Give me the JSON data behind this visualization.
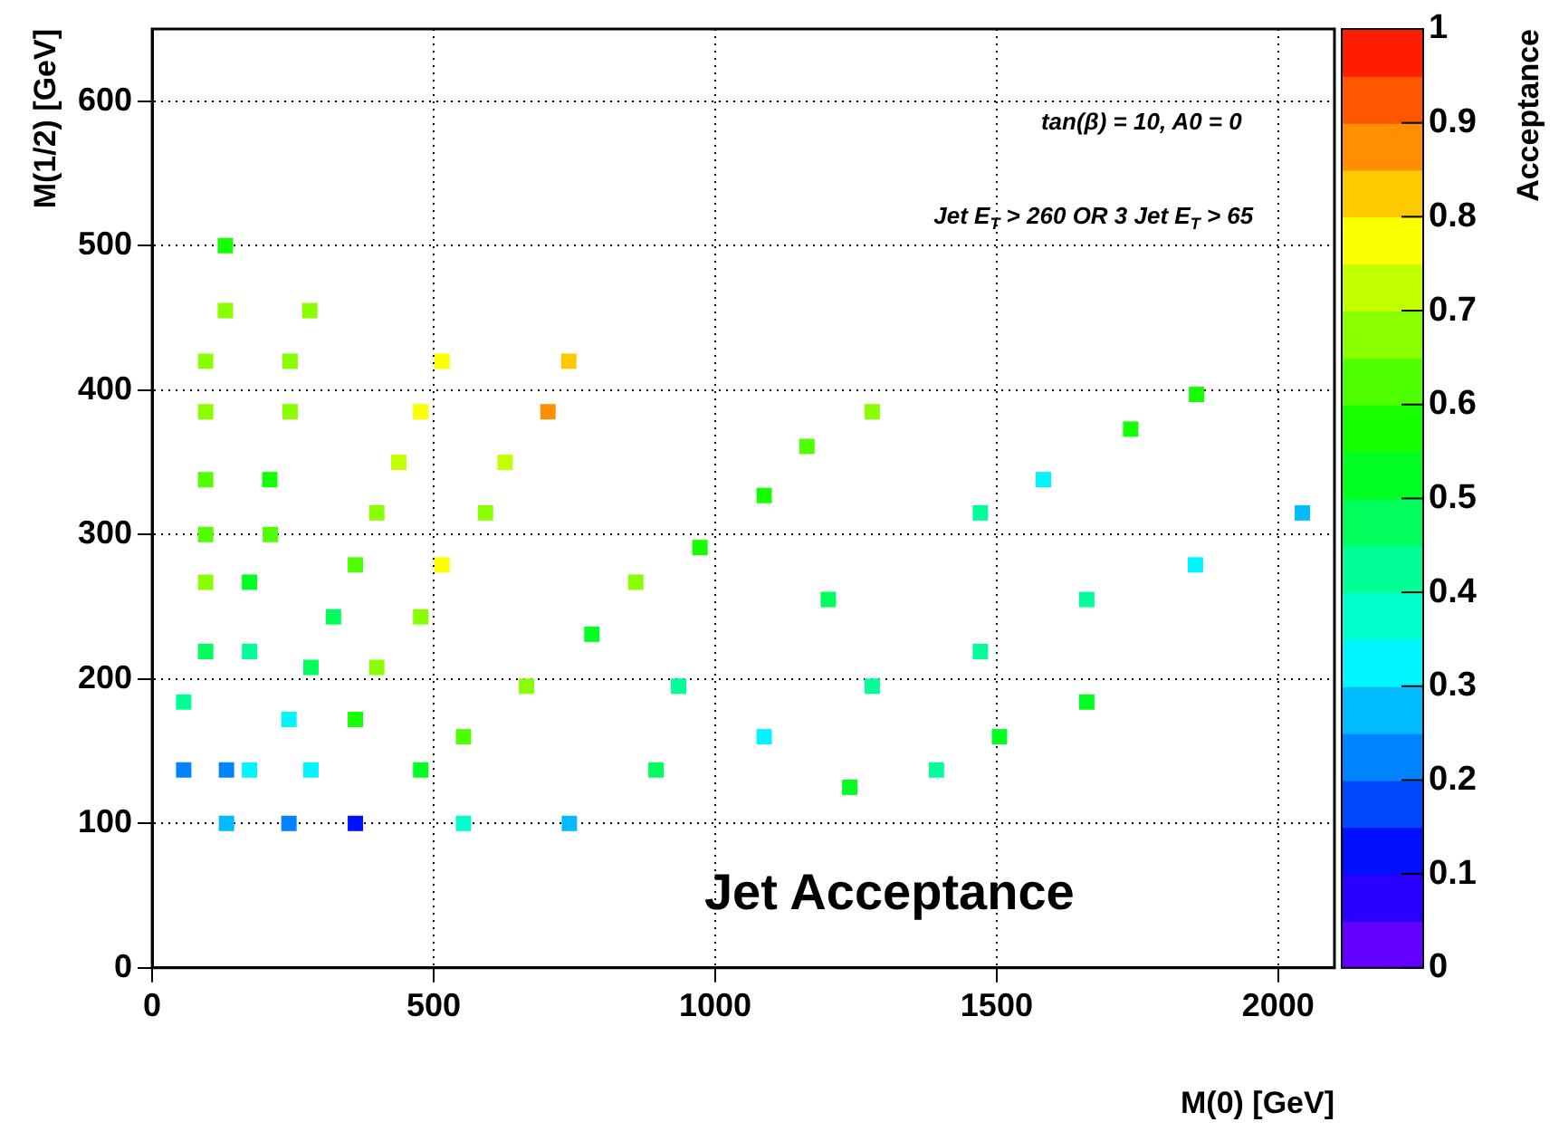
{
  "chart_data": {
    "type": "scatter",
    "title": "Jet Acceptance",
    "xlabel": "M(0) [GeV]",
    "ylabel": "M(1/2) [GeV]",
    "clabel": "Acceptance",
    "annotations": [
      "tan(β) = 10, A0 = 0",
      "Jet E$_{T}$ > 260 OR 3 Jet E$_{T}$ > 65"
    ],
    "x": [
      130,
      130,
      280,
      95,
      245,
      515,
      740,
      95,
      245,
      477,
      703,
      438,
      627,
      95,
      209,
      399,
      592,
      95,
      210,
      361,
      515,
      973,
      95,
      173,
      859,
      322,
      477,
      781,
      95,
      173,
      282,
      399,
      665,
      935,
      56,
      243,
      361,
      553,
      56,
      132,
      173,
      282,
      477,
      895,
      132,
      243,
      361,
      553,
      741,
      1279,
      1163,
      1087,
      1583,
      1738,
      1855,
      1471,
      2043,
      1853,
      1201,
      1660,
      1471,
      1279,
      1660,
      1087,
      1505,
      1393,
      1239
    ],
    "values": [
      500,
      455,
      455,
      420,
      420,
      420,
      420,
      385,
      385,
      385,
      385,
      350,
      350,
      338,
      338,
      315,
      315,
      300,
      300,
      279,
      279,
      291,
      267,
      267,
      267,
      243,
      243,
      231,
      219,
      219,
      208,
      208,
      195,
      195,
      184,
      172,
      172,
      160,
      137,
      137,
      137,
      137,
      137,
      137,
      100,
      100,
      100,
      100,
      100,
      385,
      361,
      327,
      338,
      373,
      397,
      315,
      315,
      279,
      255,
      255,
      219,
      195,
      184,
      160,
      160,
      137,
      125
    ],
    "cvalues": [
      0.57,
      0.65,
      0.67,
      0.68,
      0.67,
      0.78,
      0.82,
      0.67,
      0.67,
      0.78,
      0.87,
      0.73,
      0.73,
      0.63,
      0.58,
      0.68,
      0.68,
      0.63,
      0.6,
      0.63,
      0.75,
      0.55,
      0.65,
      0.53,
      0.65,
      0.48,
      0.68,
      0.5,
      0.47,
      0.4,
      0.45,
      0.68,
      0.65,
      0.4,
      0.4,
      0.33,
      0.55,
      0.62,
      0.22,
      0.22,
      0.33,
      0.33,
      0.53,
      0.45,
      0.27,
      0.22,
      0.12,
      0.38,
      0.28,
      0.68,
      0.63,
      0.55,
      0.33,
      0.55,
      0.57,
      0.4,
      0.28,
      0.33,
      0.45,
      0.4,
      0.4,
      0.4,
      0.53,
      0.33,
      0.5,
      0.4,
      0.5
    ],
    "xlim": [
      0,
      2100
    ],
    "xticks": [
      0,
      500,
      1000,
      1500,
      2000
    ],
    "ylim": [
      0,
      650
    ],
    "yticks": [
      0,
      100,
      200,
      300,
      400,
      500,
      600
    ],
    "clim": [
      0,
      1
    ],
    "cticks": [
      0,
      0.1,
      0.2,
      0.3,
      0.4,
      0.5,
      0.6,
      0.7,
      0.8,
      0.9,
      1
    ],
    "grid": true,
    "marker": "square"
  }
}
